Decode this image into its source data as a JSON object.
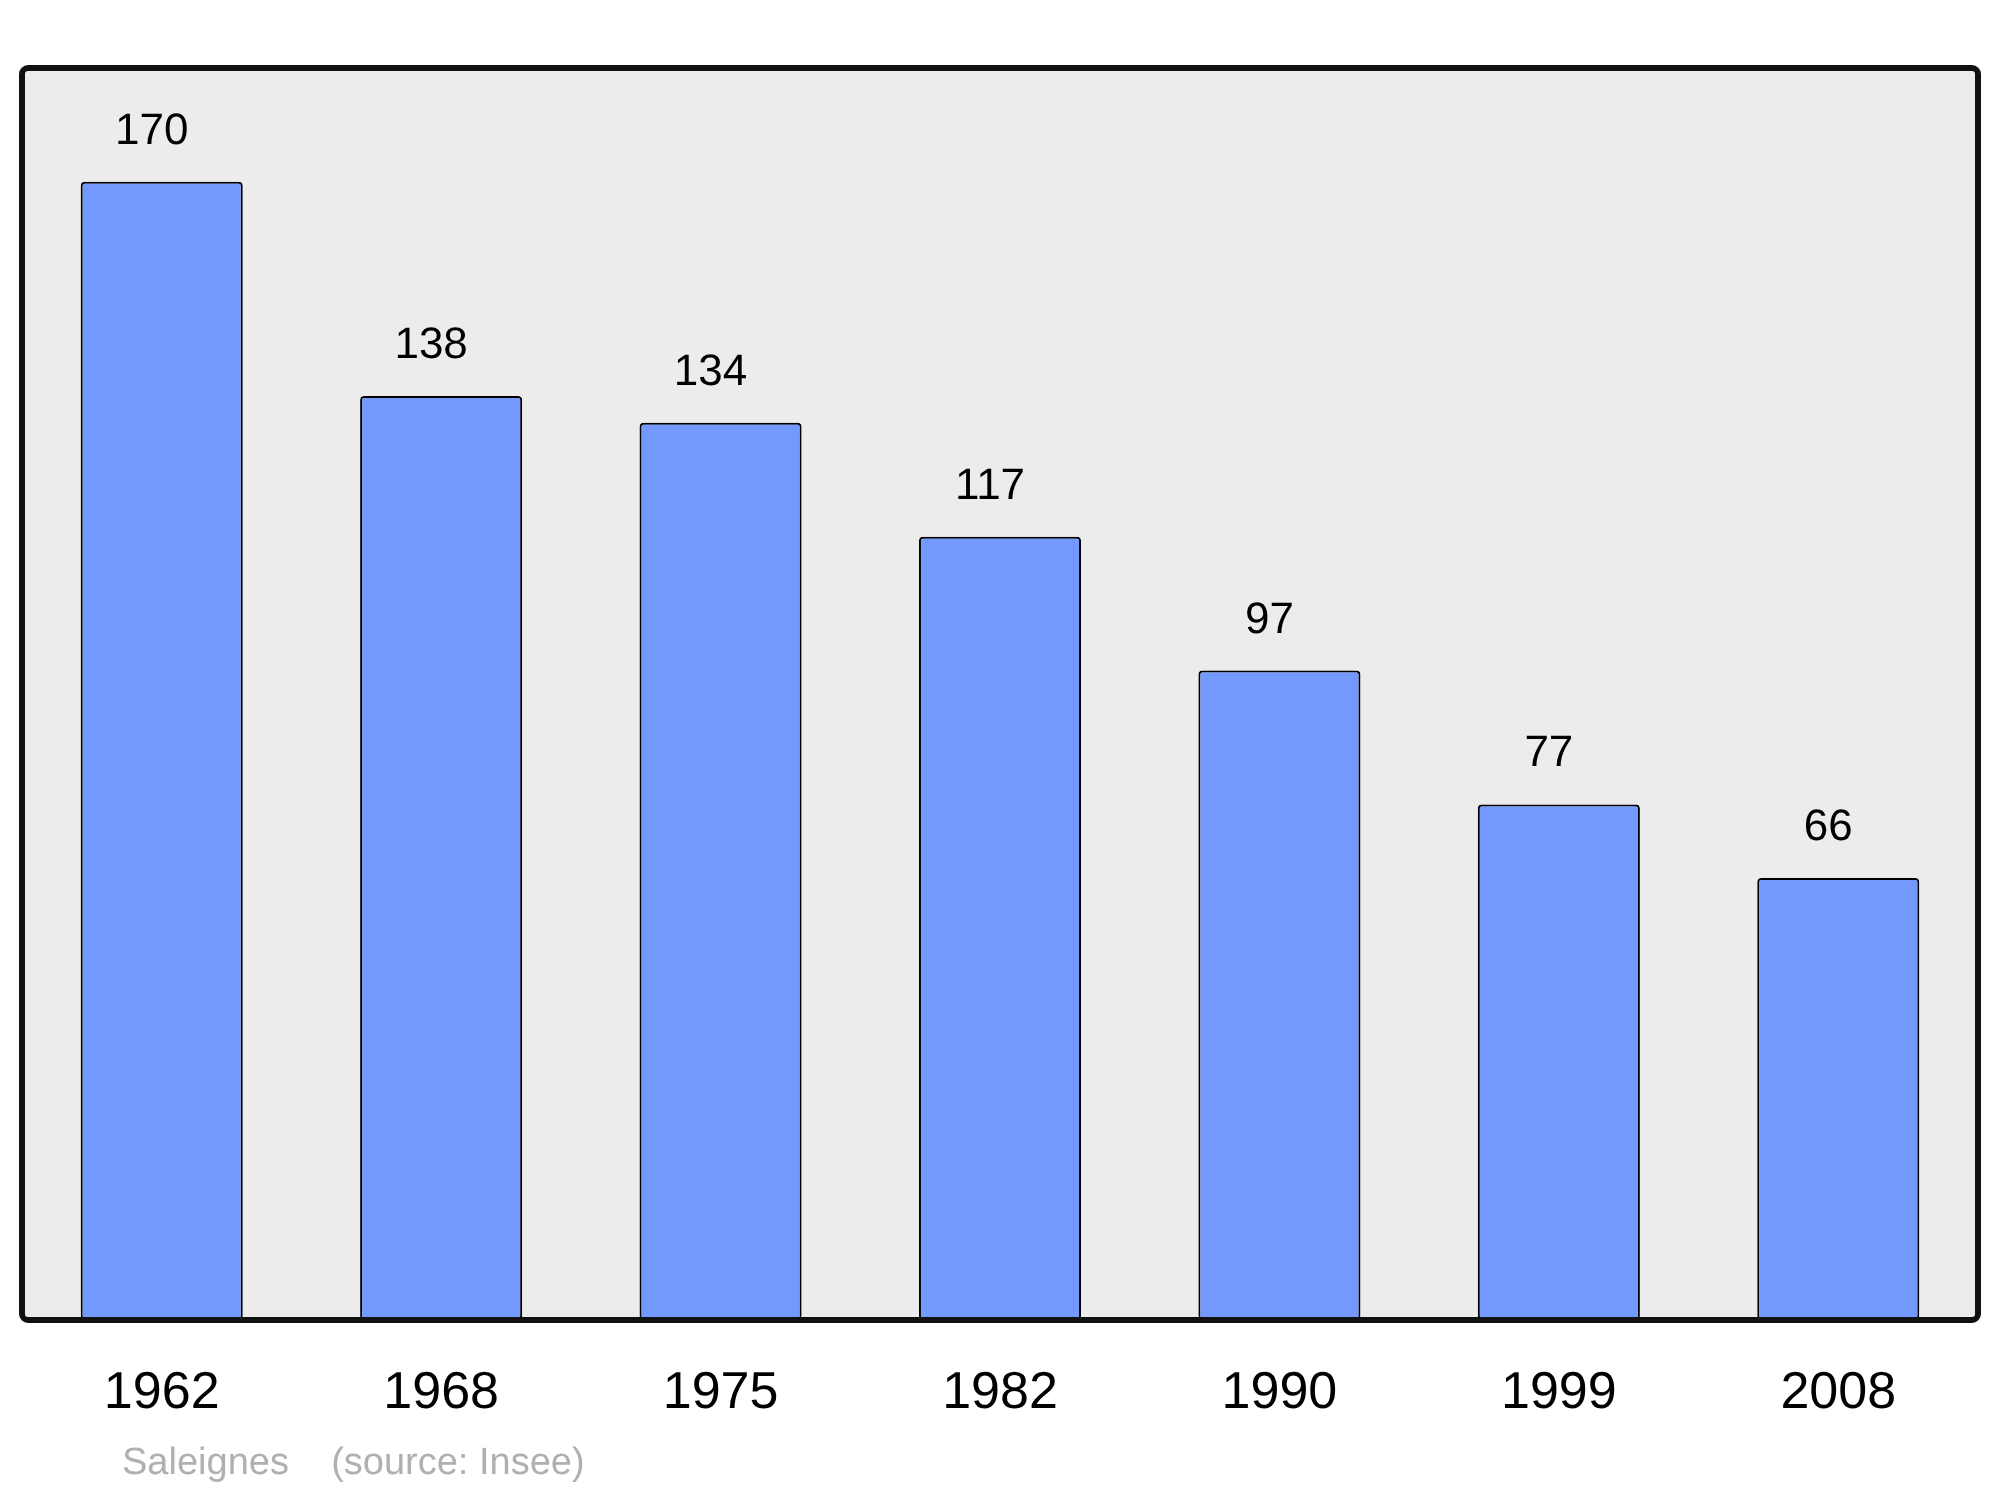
{
  "chart_data": {
    "type": "bar",
    "categories": [
      "1962",
      "1968",
      "1975",
      "1982",
      "1990",
      "1999",
      "2008"
    ],
    "values": [
      170,
      138,
      134,
      117,
      97,
      77,
      66
    ],
    "color": "#7399ff",
    "ylim": [
      0,
      187
    ],
    "tick_labels": "x",
    "data_labels": true,
    "annotations": [
      "Saleignes    (source: Insee)"
    ]
  }
}
